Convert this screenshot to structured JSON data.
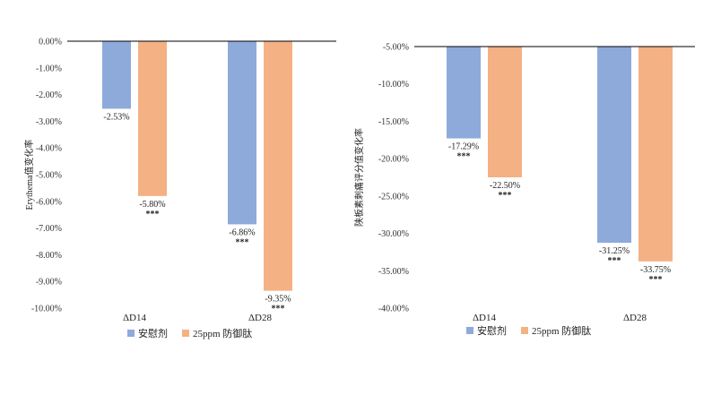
{
  "colors": {
    "placebo": "#8eaadb",
    "treatment": "#f4b183",
    "axis": "#000000"
  },
  "chart_data": [
    {
      "type": "bar",
      "ylabel": "Erythema值变化率",
      "categories": [
        "ΔD14",
        "ΔD28"
      ],
      "ylim": [
        -10,
        0
      ],
      "yticks": [
        0,
        -1,
        -2,
        -3,
        -4,
        -5,
        -6,
        -7,
        -8,
        -9,
        -10
      ],
      "tick_labels": [
        "0.00%",
        "-1.00%",
        "-2.00%",
        "-3.00%",
        "-4.00%",
        "-5.00%",
        "-6.00%",
        "-7.00%",
        "-8.00%",
        "-9.00%",
        "-10.00%"
      ],
      "series": [
        {
          "name": "安慰剂",
          "values": [
            -2.53,
            -6.86
          ],
          "labels": [
            "-2.53%",
            "-6.86%"
          ],
          "sig": [
            "",
            "***"
          ]
        },
        {
          "name": "25ppm 防御肽",
          "values": [
            -5.8,
            -9.35
          ],
          "labels": [
            "-5.80%",
            "-9.35%"
          ],
          "sig": [
            "***",
            "***"
          ]
        }
      ],
      "legend": "bottom"
    },
    {
      "type": "bar",
      "ylabel": "陕板素刺痛评分值变化率",
      "categories": [
        "ΔD14",
        "ΔD28"
      ],
      "ylim": [
        -40,
        -5
      ],
      "yticks": [
        -5,
        -10,
        -15,
        -20,
        -25,
        -30,
        -35,
        -40
      ],
      "tick_labels": [
        "-5.00%",
        "-10.00%",
        "-15.00%",
        "-20.00%",
        "-25.00%",
        "-30.00%",
        "-35.00%",
        "-40.00%"
      ],
      "series": [
        {
          "name": "安慰剂",
          "values": [
            -17.29,
            -31.25
          ],
          "labels": [
            "-17.29%",
            "-31.25%"
          ],
          "sig": [
            "***",
            "***"
          ]
        },
        {
          "name": "25ppm 防御肽",
          "values": [
            -22.5,
            -33.75
          ],
          "labels": [
            "-22.50%",
            "-33.75%"
          ],
          "sig": [
            "***",
            "***"
          ]
        }
      ],
      "legend": "bottom"
    }
  ]
}
